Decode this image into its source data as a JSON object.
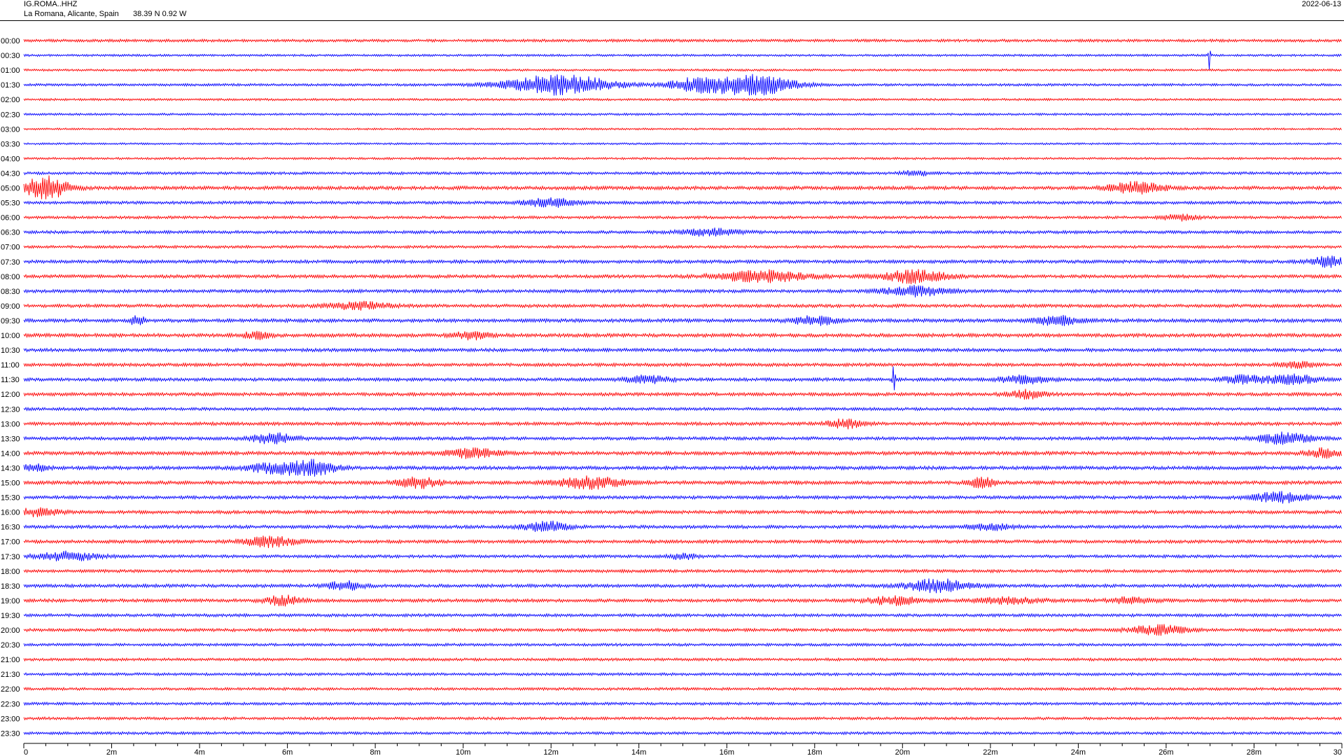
{
  "header": {
    "station_code": "IG.ROMA..HHZ",
    "station_location": "La Romana, Alicante, Spain",
    "station_coords": "38.39 N 0.92 W",
    "date": "2022-06-13"
  },
  "chart_data": {
    "type": "line",
    "title": "",
    "xlabel": "",
    "ylabel": "",
    "x_axis": {
      "range": [
        0,
        30
      ],
      "unit": "minutes",
      "ticks": [
        "0",
        "2m",
        "4m",
        "6m",
        "8m",
        "10m",
        "12m",
        "14m",
        "16m",
        "18m",
        "20m",
        "22m",
        "24m",
        "26m",
        "28m",
        "30"
      ]
    },
    "rows": [
      "00:00",
      "00:30",
      "01:00",
      "01:30",
      "02:00",
      "02:30",
      "03:00",
      "03:30",
      "04:00",
      "04:30",
      "05:00",
      "05:30",
      "06:00",
      "06:30",
      "07:00",
      "07:30",
      "08:00",
      "08:30",
      "09:00",
      "09:30",
      "10:00",
      "10:30",
      "11:00",
      "11:30",
      "12:00",
      "12:30",
      "13:00",
      "13:30",
      "14:00",
      "14:30",
      "15:00",
      "15:30",
      "16:00",
      "16:30",
      "17:00",
      "17:30",
      "18:00",
      "18:30",
      "19:00",
      "19:30",
      "20:00",
      "20:30",
      "21:00",
      "21:30",
      "22:00",
      "22:30",
      "23:00",
      "23:30"
    ],
    "colors": {
      "even_rows": "#ff0000",
      "odd_rows": "#0000ff"
    },
    "noise": [
      2.0,
      1.6,
      1.6,
      1.8,
      1.6,
      1.6,
      1.4,
      1.4,
      1.6,
      2.0,
      2.6,
      2.2,
      2.0,
      2.2,
      2.0,
      2.4,
      2.4,
      2.4,
      2.4,
      2.6,
      2.6,
      2.4,
      2.4,
      2.4,
      2.4,
      2.2,
      2.4,
      2.4,
      2.6,
      2.6,
      2.6,
      2.4,
      2.4,
      2.4,
      2.4,
      2.2,
      2.2,
      2.4,
      2.4,
      2.2,
      2.2,
      2.0,
      2.0,
      2.0,
      2.0,
      2.0,
      2.0,
      2.0
    ],
    "events": [
      {
        "row": 1,
        "t": 26.98,
        "amp": 28,
        "dur": 0.04
      },
      {
        "row": 3,
        "t": 12.2,
        "amp": 14,
        "dur": 2.4
      },
      {
        "row": 3,
        "t": 15.3,
        "amp": 9,
        "dur": 1.2
      },
      {
        "row": 3,
        "t": 16.6,
        "amp": 15,
        "dur": 1.8
      },
      {
        "row": 9,
        "t": 20.3,
        "amp": 4,
        "dur": 0.6
      },
      {
        "row": 10,
        "t": 0.5,
        "amp": 16,
        "dur": 1.0
      },
      {
        "row": 10,
        "t": 25.3,
        "amp": 8,
        "dur": 1.2
      },
      {
        "row": 11,
        "t": 12.0,
        "amp": 6,
        "dur": 1.2
      },
      {
        "row": 12,
        "t": 26.3,
        "amp": 4,
        "dur": 0.8
      },
      {
        "row": 13,
        "t": 15.6,
        "amp": 5,
        "dur": 1.4
      },
      {
        "row": 15,
        "t": 29.7,
        "amp": 7,
        "dur": 0.8
      },
      {
        "row": 16,
        "t": 16.8,
        "amp": 8,
        "dur": 2.0
      },
      {
        "row": 16,
        "t": 20.3,
        "amp": 9,
        "dur": 1.4
      },
      {
        "row": 17,
        "t": 20.3,
        "amp": 7,
        "dur": 1.4
      },
      {
        "row": 18,
        "t": 7.6,
        "amp": 5,
        "dur": 1.4
      },
      {
        "row": 19,
        "t": 2.6,
        "amp": 9,
        "dur": 0.3
      },
      {
        "row": 19,
        "t": 18.0,
        "amp": 6,
        "dur": 1.0
      },
      {
        "row": 19,
        "t": 23.5,
        "amp": 6,
        "dur": 1.0
      },
      {
        "row": 20,
        "t": 5.3,
        "amp": 5,
        "dur": 0.6
      },
      {
        "row": 20,
        "t": 10.2,
        "amp": 5,
        "dur": 0.8
      },
      {
        "row": 22,
        "t": 29.0,
        "amp": 4,
        "dur": 0.8
      },
      {
        "row": 23,
        "t": 14.2,
        "amp": 5,
        "dur": 1.0
      },
      {
        "row": 23,
        "t": 19.8,
        "amp": 20,
        "dur": 0.06
      },
      {
        "row": 23,
        "t": 22.8,
        "amp": 5,
        "dur": 1.2
      },
      {
        "row": 23,
        "t": 27.8,
        "amp": 6,
        "dur": 1.0
      },
      {
        "row": 23,
        "t": 28.9,
        "amp": 7,
        "dur": 1.0
      },
      {
        "row": 24,
        "t": 22.8,
        "amp": 6,
        "dur": 0.8
      },
      {
        "row": 26,
        "t": 18.7,
        "amp": 6,
        "dur": 0.8
      },
      {
        "row": 27,
        "t": 5.7,
        "amp": 7,
        "dur": 1.0
      },
      {
        "row": 27,
        "t": 28.7,
        "amp": 8,
        "dur": 1.2
      },
      {
        "row": 28,
        "t": 10.2,
        "amp": 6,
        "dur": 1.2
      },
      {
        "row": 28,
        "t": 29.6,
        "amp": 6,
        "dur": 0.8
      },
      {
        "row": 29,
        "t": 0.2,
        "amp": 5,
        "dur": 0.6
      },
      {
        "row": 29,
        "t": 5.8,
        "amp": 7,
        "dur": 1.4
      },
      {
        "row": 29,
        "t": 6.6,
        "amp": 9,
        "dur": 1.0
      },
      {
        "row": 30,
        "t": 9.0,
        "amp": 7,
        "dur": 1.0
      },
      {
        "row": 30,
        "t": 12.9,
        "amp": 8,
        "dur": 1.4
      },
      {
        "row": 30,
        "t": 21.8,
        "amp": 7,
        "dur": 0.6
      },
      {
        "row": 31,
        "t": 28.6,
        "amp": 7,
        "dur": 1.2
      },
      {
        "row": 32,
        "t": 0.3,
        "amp": 5,
        "dur": 1.0
      },
      {
        "row": 33,
        "t": 11.9,
        "amp": 7,
        "dur": 1.0
      },
      {
        "row": 33,
        "t": 22.0,
        "amp": 4,
        "dur": 1.0
      },
      {
        "row": 34,
        "t": 5.6,
        "amp": 7,
        "dur": 1.2
      },
      {
        "row": 35,
        "t": 1.0,
        "amp": 6,
        "dur": 1.4
      },
      {
        "row": 35,
        "t": 15.0,
        "amp": 4,
        "dur": 0.6
      },
      {
        "row": 37,
        "t": 7.3,
        "amp": 6,
        "dur": 0.8
      },
      {
        "row": 37,
        "t": 20.8,
        "amp": 9,
        "dur": 1.4
      },
      {
        "row": 38,
        "t": 5.9,
        "amp": 7,
        "dur": 0.8
      },
      {
        "row": 38,
        "t": 19.8,
        "amp": 6,
        "dur": 1.2
      },
      {
        "row": 38,
        "t": 22.4,
        "amp": 4,
        "dur": 1.4
      },
      {
        "row": 38,
        "t": 25.2,
        "amp": 4,
        "dur": 1.0
      },
      {
        "row": 40,
        "t": 25.8,
        "amp": 7,
        "dur": 1.2
      }
    ]
  }
}
